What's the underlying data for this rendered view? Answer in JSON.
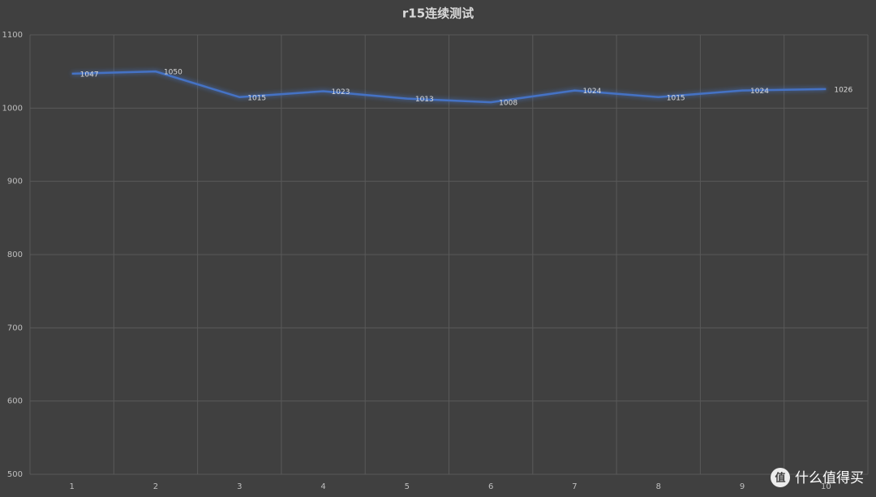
{
  "chart_data": {
    "type": "line",
    "title": "r15连续测试",
    "categories": [
      "1",
      "2",
      "3",
      "4",
      "5",
      "6",
      "7",
      "8",
      "9",
      "10"
    ],
    "series": [
      {
        "name": "r15",
        "color": "#4472c4",
        "values": [
          1047,
          1050,
          1015,
          1023,
          1013,
          1008,
          1024,
          1015,
          1024,
          1026
        ]
      }
    ],
    "ylim": [
      500,
      1100
    ],
    "yticks": [
      500,
      600,
      700,
      800,
      900,
      1000,
      1100
    ],
    "grid": true,
    "data_labels": true
  },
  "watermark": {
    "icon": "值",
    "text": "什么值得买"
  }
}
